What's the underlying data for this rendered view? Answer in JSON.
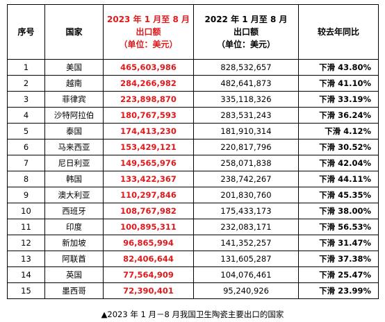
{
  "headers": {
    "seq": "序号",
    "country": "国家",
    "y2023": [
      "2023 年 1 月至 8 月",
      "出口额",
      "（单位：美元）"
    ],
    "y2022": [
      "2022 年 1 月至 8 月",
      "出口额",
      "（单位：美元）"
    ],
    "change": "较去年同比"
  },
  "rows": [
    {
      "seq": "1",
      "country": "美国",
      "v2023": "465,603,986",
      "v2022": "828,532,657",
      "change": "下滑 43.80%"
    },
    {
      "seq": "2",
      "country": "越南",
      "v2023": "284,266,982",
      "v2022": "482,641,873",
      "change": "下滑 41.10%"
    },
    {
      "seq": "3",
      "country": "菲律宾",
      "v2023": "223,898,870",
      "v2022": "335,118,326",
      "change": "下滑 33.19%"
    },
    {
      "seq": "4",
      "country": "沙特阿拉伯",
      "v2023": "180,767,593",
      "v2022": "283,531,243",
      "change": "下滑 36.24%"
    },
    {
      "seq": "5",
      "country": "泰国",
      "v2023": "174,413,230",
      "v2022": "181,910,314",
      "change": "下滑 4.12%"
    },
    {
      "seq": "6",
      "country": "马来西亚",
      "v2023": "153,429,121",
      "v2022": "220,817,796",
      "change": "下滑 30.52%"
    },
    {
      "seq": "7",
      "country": "尼日利亚",
      "v2023": "149,565,976",
      "v2022": "258,071,838",
      "change": "下滑 42.04%"
    },
    {
      "seq": "8",
      "country": "韩国",
      "v2023": "133,422,367",
      "v2022": "238,742,267",
      "change": "下滑 44.11%"
    },
    {
      "seq": "9",
      "country": "澳大利亚",
      "v2023": "110,297,846",
      "v2022": "201,830,760",
      "change": "下滑 45.35%"
    },
    {
      "seq": "10",
      "country": "西班牙",
      "v2023": "108,767,982",
      "v2022": "175,433,173",
      "change": "下滑 38.00%"
    },
    {
      "seq": "11",
      "country": "印度",
      "v2023": "100,895,311",
      "v2022": "232,083,171",
      "change": "下滑 56.53%"
    },
    {
      "seq": "12",
      "country": "新加坡",
      "v2023": "96,865,994",
      "v2022": "141,352,257",
      "change": "下滑 31.47%"
    },
    {
      "seq": "13",
      "country": "阿联酋",
      "v2023": "82,406,644",
      "v2022": "131,605,287",
      "change": "下滑 37.38%"
    },
    {
      "seq": "14",
      "country": "英国",
      "v2023": "77,564,909",
      "v2022": "104,076,461",
      "change": "下滑 25.47%"
    },
    {
      "seq": "15",
      "country": "墨西哥",
      "v2023": "72,390,401",
      "v2022": "95,240,926",
      "change": "下滑 23.99%"
    }
  ],
  "caption": "▲2023 年 1 月－8 月我国卫生陶瓷主要出口的国家",
  "colors": {
    "highlight": "#e0191b",
    "text": "#000000",
    "border": "#000000"
  }
}
